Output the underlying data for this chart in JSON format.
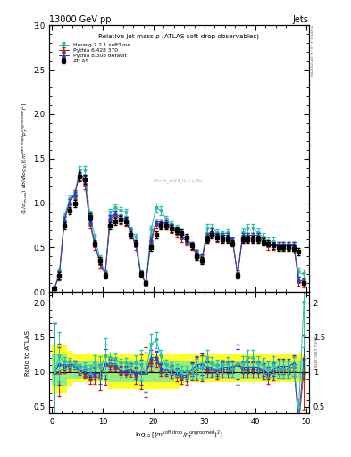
{
  "title_top": "13000 GeV pp",
  "title_right": "Jets",
  "plot_title": "Relative jet mass ρ (ATLAS soft-drop observables)",
  "right_label_top": "Rivet 3.1.10, ≥ 3M events",
  "right_label_bot": "[arXiv:1306.3436]",
  "watermark": "ATLAS_2019_I1772362",
  "ylabel_main": "(1/σ_{resum}) dσ/d log_{10}[(m^{soft drop}/p_T^{ungroomed})^2]",
  "ylabel_ratio": "Ratio to ATLAS",
  "xlim": [
    -0.5,
    50.5
  ],
  "ylim_main": [
    0,
    3
  ],
  "ylim_ratio": [
    0.4,
    2.15
  ],
  "atlas_color": "black",
  "herwig_color": "#2CBDAC",
  "pythia6_color": "#CC2200",
  "pythia8_color": "#2244CC",
  "x_data": [
    0.5,
    1.5,
    2.5,
    3.5,
    4.5,
    5.5,
    6.5,
    7.5,
    8.5,
    9.5,
    10.5,
    11.5,
    12.5,
    13.5,
    14.5,
    15.5,
    16.5,
    17.5,
    18.5,
    19.5,
    20.5,
    21.5,
    22.5,
    23.5,
    24.5,
    25.5,
    26.5,
    27.5,
    28.5,
    29.5,
    30.5,
    31.5,
    32.5,
    33.5,
    34.5,
    35.5,
    36.5,
    37.5,
    38.5,
    39.5,
    40.5,
    41.5,
    42.5,
    43.5,
    44.5,
    45.5,
    46.5,
    47.5,
    48.5,
    49.5
  ],
  "atlas_y": [
    0.04,
    0.18,
    0.75,
    0.92,
    1.0,
    1.3,
    1.27,
    0.85,
    0.55,
    0.35,
    0.18,
    0.75,
    0.8,
    0.82,
    0.8,
    0.65,
    0.55,
    0.2,
    0.1,
    0.5,
    0.65,
    0.75,
    0.75,
    0.72,
    0.7,
    0.67,
    0.62,
    0.52,
    0.4,
    0.35,
    0.6,
    0.65,
    0.62,
    0.6,
    0.6,
    0.55,
    0.18,
    0.6,
    0.6,
    0.6,
    0.6,
    0.57,
    0.55,
    0.52,
    0.5,
    0.5,
    0.5,
    0.48,
    0.45,
    0.1
  ],
  "atlas_yerr": [
    0.02,
    0.04,
    0.04,
    0.04,
    0.04,
    0.05,
    0.05,
    0.04,
    0.04,
    0.04,
    0.03,
    0.04,
    0.04,
    0.04,
    0.04,
    0.04,
    0.04,
    0.03,
    0.02,
    0.04,
    0.04,
    0.04,
    0.04,
    0.04,
    0.04,
    0.04,
    0.04,
    0.04,
    0.04,
    0.04,
    0.04,
    0.04,
    0.04,
    0.04,
    0.04,
    0.04,
    0.03,
    0.04,
    0.04,
    0.04,
    0.04,
    0.04,
    0.04,
    0.04,
    0.04,
    0.04,
    0.04,
    0.04,
    0.04,
    0.02
  ],
  "herwig_y": [
    0.04,
    0.22,
    0.85,
    1.05,
    1.1,
    1.37,
    1.37,
    0.88,
    0.62,
    0.37,
    0.22,
    0.9,
    0.95,
    0.92,
    0.9,
    0.7,
    0.62,
    0.22,
    0.1,
    0.7,
    0.95,
    0.92,
    0.82,
    0.76,
    0.72,
    0.67,
    0.62,
    0.52,
    0.42,
    0.37,
    0.72,
    0.72,
    0.67,
    0.65,
    0.67,
    0.57,
    0.2,
    0.67,
    0.72,
    0.72,
    0.67,
    0.62,
    0.57,
    0.57,
    0.52,
    0.52,
    0.52,
    0.52,
    0.22,
    0.2
  ],
  "herwig_yerr": [
    0.02,
    0.04,
    0.04,
    0.04,
    0.04,
    0.05,
    0.05,
    0.04,
    0.04,
    0.04,
    0.03,
    0.04,
    0.04,
    0.04,
    0.04,
    0.04,
    0.04,
    0.03,
    0.02,
    0.05,
    0.05,
    0.05,
    0.04,
    0.04,
    0.04,
    0.04,
    0.04,
    0.04,
    0.04,
    0.04,
    0.05,
    0.05,
    0.04,
    0.04,
    0.04,
    0.04,
    0.04,
    0.05,
    0.05,
    0.05,
    0.05,
    0.05,
    0.05,
    0.05,
    0.05,
    0.05,
    0.05,
    0.05,
    0.05,
    0.05
  ],
  "pythia6_y": [
    0.04,
    0.18,
    0.8,
    1.0,
    1.1,
    1.32,
    1.22,
    0.77,
    0.52,
    0.32,
    0.2,
    0.82,
    0.87,
    0.82,
    0.8,
    0.67,
    0.52,
    0.2,
    0.1,
    0.57,
    0.77,
    0.77,
    0.77,
    0.72,
    0.67,
    0.62,
    0.57,
    0.52,
    0.42,
    0.37,
    0.62,
    0.67,
    0.62,
    0.62,
    0.62,
    0.57,
    0.2,
    0.62,
    0.62,
    0.62,
    0.62,
    0.57,
    0.52,
    0.52,
    0.52,
    0.52,
    0.52,
    0.52,
    0.12,
    0.1
  ],
  "pythia6_yerr": [
    0.02,
    0.05,
    0.05,
    0.05,
    0.05,
    0.06,
    0.06,
    0.05,
    0.05,
    0.05,
    0.04,
    0.05,
    0.05,
    0.05,
    0.05,
    0.05,
    0.05,
    0.04,
    0.03,
    0.05,
    0.05,
    0.05,
    0.05,
    0.05,
    0.05,
    0.05,
    0.05,
    0.05,
    0.05,
    0.05,
    0.05,
    0.05,
    0.05,
    0.05,
    0.05,
    0.05,
    0.04,
    0.05,
    0.05,
    0.05,
    0.05,
    0.05,
    0.05,
    0.05,
    0.05,
    0.05,
    0.05,
    0.05,
    0.05,
    0.05
  ],
  "pythia8_y": [
    0.04,
    0.2,
    0.82,
    1.02,
    1.1,
    1.34,
    1.27,
    0.8,
    0.54,
    0.34,
    0.2,
    0.84,
    0.89,
    0.84,
    0.82,
    0.68,
    0.54,
    0.2,
    0.1,
    0.6,
    0.79,
    0.79,
    0.78,
    0.74,
    0.69,
    0.64,
    0.59,
    0.54,
    0.44,
    0.39,
    0.64,
    0.69,
    0.64,
    0.64,
    0.64,
    0.59,
    0.2,
    0.64,
    0.64,
    0.64,
    0.64,
    0.59,
    0.54,
    0.54,
    0.54,
    0.54,
    0.54,
    0.54,
    0.14,
    0.12
  ],
  "pythia8_yerr": [
    0.02,
    0.03,
    0.03,
    0.03,
    0.03,
    0.04,
    0.04,
    0.03,
    0.03,
    0.03,
    0.02,
    0.03,
    0.03,
    0.03,
    0.03,
    0.03,
    0.03,
    0.02,
    0.02,
    0.03,
    0.03,
    0.03,
    0.03,
    0.03,
    0.03,
    0.03,
    0.03,
    0.03,
    0.03,
    0.03,
    0.03,
    0.03,
    0.03,
    0.03,
    0.03,
    0.03,
    0.02,
    0.03,
    0.03,
    0.03,
    0.03,
    0.03,
    0.03,
    0.03,
    0.03,
    0.03,
    0.03,
    0.03,
    0.03,
    0.02
  ],
  "band_edges": [
    0,
    1,
    2,
    3,
    4,
    5,
    6,
    7,
    8,
    9,
    10,
    11,
    12,
    13,
    14,
    15,
    16,
    17,
    18,
    19,
    20,
    21,
    22,
    23,
    24,
    25,
    26,
    27,
    28,
    29,
    30,
    31,
    32,
    33,
    34,
    35,
    36,
    37,
    38,
    39,
    40,
    41,
    42,
    43,
    44,
    45,
    46,
    47,
    48,
    49,
    50
  ],
  "yellow_low": [
    0.7,
    0.7,
    0.7,
    0.8,
    0.85,
    0.85,
    0.85,
    0.85,
    0.85,
    0.85,
    0.85,
    0.75,
    0.75,
    0.75,
    0.75,
    0.75,
    0.75,
    0.75,
    0.75,
    0.75,
    0.75,
    0.75,
    0.75,
    0.75,
    0.75,
    0.8,
    0.85,
    0.85,
    0.85,
    0.85,
    0.85,
    0.85,
    0.85,
    0.85,
    0.85,
    0.85,
    0.85,
    0.85,
    0.85,
    0.85,
    0.85,
    0.85,
    0.85,
    0.85,
    0.85,
    0.85,
    0.85,
    0.85,
    0.85,
    0.85,
    0.85
  ],
  "yellow_high": [
    1.4,
    1.4,
    1.4,
    1.3,
    1.25,
    1.25,
    1.25,
    1.25,
    1.25,
    1.25,
    1.25,
    1.25,
    1.25,
    1.25,
    1.25,
    1.25,
    1.25,
    1.25,
    1.25,
    1.25,
    1.25,
    1.25,
    1.25,
    1.25,
    1.25,
    1.25,
    1.25,
    1.25,
    1.25,
    1.25,
    1.25,
    1.25,
    1.25,
    1.25,
    1.25,
    1.25,
    1.25,
    1.25,
    1.25,
    1.25,
    1.25,
    1.25,
    1.25,
    1.25,
    1.25,
    1.25,
    1.25,
    1.25,
    1.25,
    1.25,
    1.25
  ],
  "green_low": [
    0.8,
    0.8,
    0.8,
    0.9,
    0.9,
    0.9,
    0.9,
    0.9,
    0.9,
    0.9,
    0.9,
    0.85,
    0.85,
    0.85,
    0.85,
    0.85,
    0.85,
    0.85,
    0.85,
    0.85,
    0.85,
    0.85,
    0.85,
    0.85,
    0.9,
    0.9,
    0.9,
    0.9,
    0.9,
    0.9,
    0.9,
    0.9,
    0.9,
    0.9,
    0.9,
    0.9,
    0.9,
    0.9,
    0.9,
    0.9,
    0.9,
    0.9,
    0.9,
    0.9,
    0.9,
    0.9,
    0.9,
    0.9,
    0.9,
    0.9,
    0.9
  ],
  "green_high": [
    1.25,
    1.25,
    1.25,
    1.15,
    1.15,
    1.15,
    1.15,
    1.15,
    1.15,
    1.15,
    1.15,
    1.15,
    1.15,
    1.15,
    1.15,
    1.15,
    1.15,
    1.15,
    1.15,
    1.15,
    1.15,
    1.15,
    1.15,
    1.15,
    1.15,
    1.15,
    1.15,
    1.15,
    1.15,
    1.15,
    1.15,
    1.15,
    1.15,
    1.15,
    1.15,
    1.15,
    1.15,
    1.15,
    1.15,
    1.15,
    1.15,
    1.15,
    1.15,
    1.15,
    1.15,
    1.15,
    1.15,
    1.15,
    1.15,
    1.15,
    1.15
  ]
}
